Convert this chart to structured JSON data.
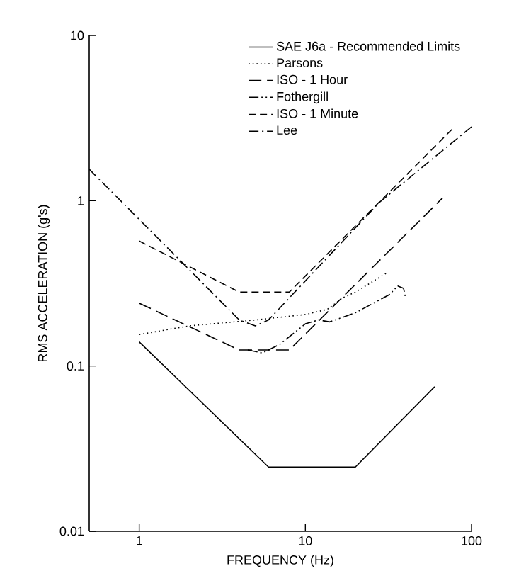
{
  "chart_data": {
    "type": "line",
    "xlabel": "FREQUENCY (Hz)",
    "ylabel": "RMS ACCELERATION (g's)",
    "log": "xy",
    "xlim": [
      0.5,
      100
    ],
    "ylim": [
      0.01,
      10
    ],
    "xticks": [
      1,
      10,
      100
    ],
    "yticks": [
      0.01,
      0.1,
      1,
      10
    ],
    "grid": false,
    "legend": "top right",
    "marker": "none",
    "series": [
      {
        "name": "SAE J6a - Recommended Limits",
        "color": "#000000",
        "line_style": "solid",
        "x": [
          1,
          6,
          20,
          60
        ],
        "values": [
          0.14,
          0.0245,
          0.0245,
          0.075
        ]
      },
      {
        "name": "Parsons",
        "color": "#000000",
        "line_style": "dotted",
        "x": [
          1,
          2,
          5,
          10,
          13.5,
          17,
          20,
          31.5
        ],
        "values": [
          0.155,
          0.175,
          0.19,
          0.205,
          0.22,
          0.26,
          0.28,
          0.37
        ]
      },
      {
        "name": "ISO - 1 Hour",
        "color": "#000000",
        "line_style": "long dashed",
        "x": [
          1,
          4,
          8,
          67
        ],
        "values": [
          0.24,
          0.125,
          0.125,
          1.04
        ]
      },
      {
        "name": "Fothergill",
        "color": "#000000",
        "line_style": "dash dot dot",
        "x": [
          4.5,
          5.5,
          7,
          10,
          12,
          14,
          20,
          32,
          36,
          39,
          40
        ],
        "values": [
          0.125,
          0.12,
          0.135,
          0.18,
          0.19,
          0.185,
          0.21,
          0.27,
          0.305,
          0.295,
          0.26
        ]
      },
      {
        "name": "ISO - 1 Minute",
        "color": "#000000",
        "line_style": "dashed",
        "x": [
          1,
          4,
          8,
          79
        ],
        "values": [
          0.57,
          0.28,
          0.28,
          2.8
        ]
      },
      {
        "name": "Lee",
        "color": "#000000",
        "line_style": "dash dot",
        "x": [
          0.5,
          1.87,
          4,
          5,
          6,
          28,
          100
        ],
        "values": [
          1.55,
          0.41,
          0.19,
          0.175,
          0.19,
          0.98,
          2.8
        ]
      }
    ]
  }
}
